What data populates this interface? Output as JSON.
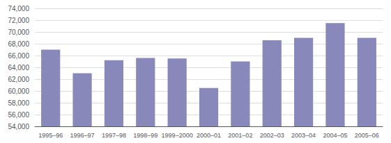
{
  "chart_data": {
    "type": "bar",
    "categories": [
      "1995–96",
      "1996–97",
      "1997–98",
      "1998–99",
      "1999–2000",
      "2000–01",
      "2001–02",
      "2002–03",
      "2003–04",
      "2004–05",
      "2005–06"
    ],
    "values": [
      67000,
      63000,
      65200,
      65600,
      65500,
      60500,
      65000,
      68600,
      69000,
      71500,
      69000
    ],
    "color": "#8888bb",
    "ylim": [
      54000,
      74000
    ],
    "yticks": [
      {
        "value": 54000,
        "label": "54,000"
      },
      {
        "value": 56000,
        "label": "56,000"
      },
      {
        "value": 58000,
        "label": "58,000"
      },
      {
        "value": 60000,
        "label": "60,000"
      },
      {
        "value": 62000,
        "label": "62,000"
      },
      {
        "value": 64000,
        "label": "64,000"
      },
      {
        "value": 66000,
        "label": "66,000"
      },
      {
        "value": 68000,
        "label": "68,000"
      },
      {
        "value": 70000,
        "label": "70,000"
      },
      {
        "value": 72000,
        "label": "72,000"
      },
      {
        "value": 74000,
        "label": "74,000"
      }
    ],
    "grid": true
  }
}
